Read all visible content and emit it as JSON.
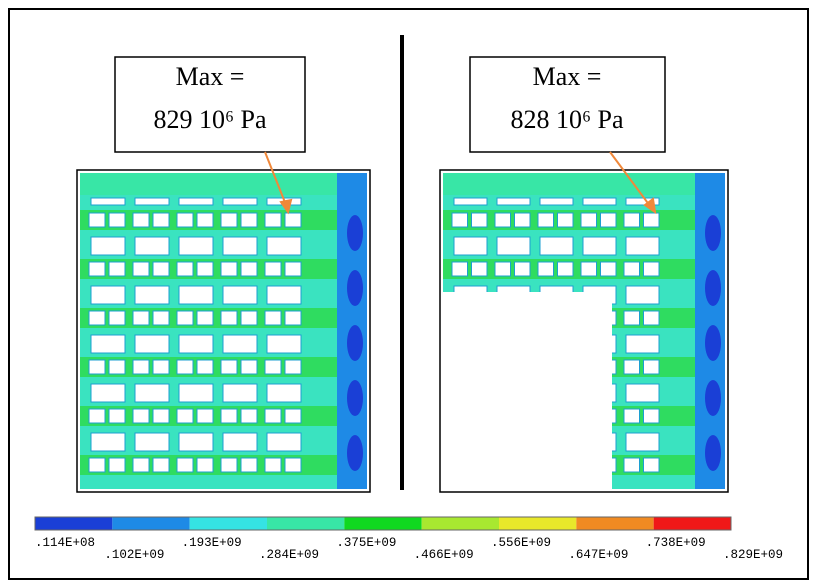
{
  "panels": [
    {
      "annotation": {
        "line1": "Max =",
        "line2": "829 10⁶ Pa"
      }
    },
    {
      "annotation": {
        "line1": "Max =",
        "line2": "828 10⁶ Pa"
      }
    }
  ],
  "colorbar": {
    "colors": [
      "#1a3fd6",
      "#1e8ae6",
      "#35e3e3",
      "#38e6a6",
      "#10d820",
      "#a8e830",
      "#e8e82a",
      "#f08a22",
      "#f01818"
    ],
    "labels": [
      ".114E+08",
      ".102E+09",
      ".193E+09",
      ".284E+09",
      ".375E+09",
      ".466E+09",
      ".556E+09",
      ".647E+09",
      ".738E+09",
      ".829E+09"
    ]
  }
}
